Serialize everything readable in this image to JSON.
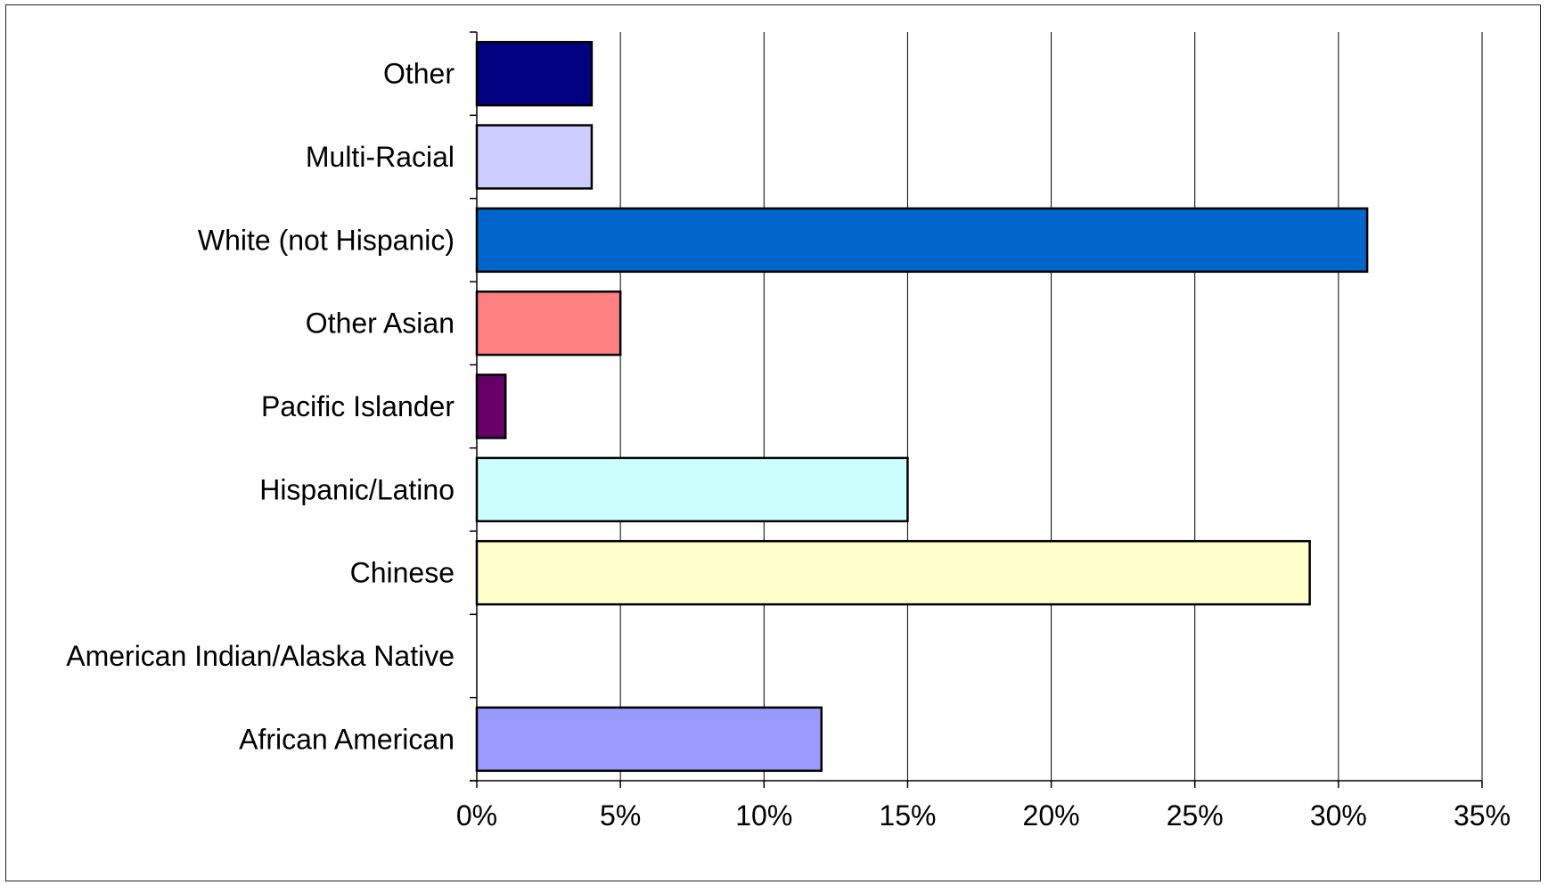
{
  "chart_data": {
    "type": "bar",
    "orientation": "horizontal",
    "categories": [
      "Other",
      "Multi-Racial",
      "White (not Hispanic)",
      "Other Asian",
      "Pacific Islander",
      "Hispanic/Latino",
      "Chinese",
      "American Indian/Alaska Native",
      "African American"
    ],
    "values": [
      4,
      4,
      31,
      5,
      1,
      15,
      29,
      0,
      12
    ],
    "colors": [
      "#000080",
      "#CCCCFF",
      "#0066CC",
      "#FF8080",
      "#660066",
      "#CCFFFF",
      "#FFFFCC",
      "#FFFFFF",
      "#9999FF"
    ],
    "xlim": [
      0,
      35
    ],
    "xticks": [
      0,
      5,
      10,
      15,
      20,
      25,
      30,
      35
    ],
    "xtick_labels": [
      "0%",
      "5%",
      "10%",
      "15%",
      "20%",
      "25%",
      "30%",
      "35%"
    ],
    "grid": "vertical",
    "legend": "none",
    "title": "",
    "xlabel": "",
    "ylabel": ""
  }
}
